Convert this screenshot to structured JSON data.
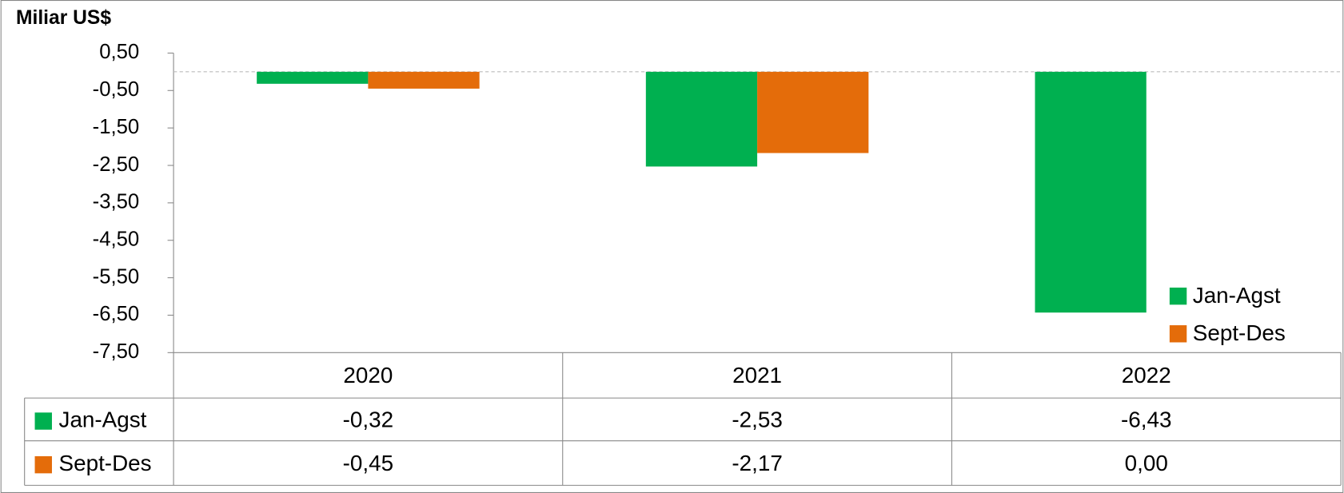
{
  "chart_data": {
    "type": "bar",
    "y_label": "Miliar US$",
    "categories": [
      "2020",
      "2021",
      "2022"
    ],
    "series": [
      {
        "name": "Jan-Agst",
        "color": "#00b050",
        "values": [
          -0.32,
          -2.53,
          -6.43
        ],
        "value_labels": [
          "-0,32",
          "-2,53",
          "-6,43"
        ]
      },
      {
        "name": "Sept-Des",
        "color": "#e46c0a",
        "values": [
          -0.45,
          -2.17,
          0.0
        ],
        "value_labels": [
          "-0,45",
          "-2,17",
          "0,00"
        ]
      }
    ],
    "ylim": [
      -7.5,
      0.5
    ],
    "yticks": [
      {
        "value": 0.5,
        "label": "0,50"
      },
      {
        "value": -0.5,
        "label": "-0,50"
      },
      {
        "value": -1.5,
        "label": "-1,50"
      },
      {
        "value": -2.5,
        "label": "-2,50"
      },
      {
        "value": -3.5,
        "label": "-3,50"
      },
      {
        "value": -4.5,
        "label": "-4,50"
      },
      {
        "value": -5.5,
        "label": "-5,50"
      },
      {
        "value": -6.5,
        "label": "-6,50"
      },
      {
        "value": -7.5,
        "label": "-7,50"
      }
    ],
    "legend": "lower right",
    "data_table": true
  }
}
